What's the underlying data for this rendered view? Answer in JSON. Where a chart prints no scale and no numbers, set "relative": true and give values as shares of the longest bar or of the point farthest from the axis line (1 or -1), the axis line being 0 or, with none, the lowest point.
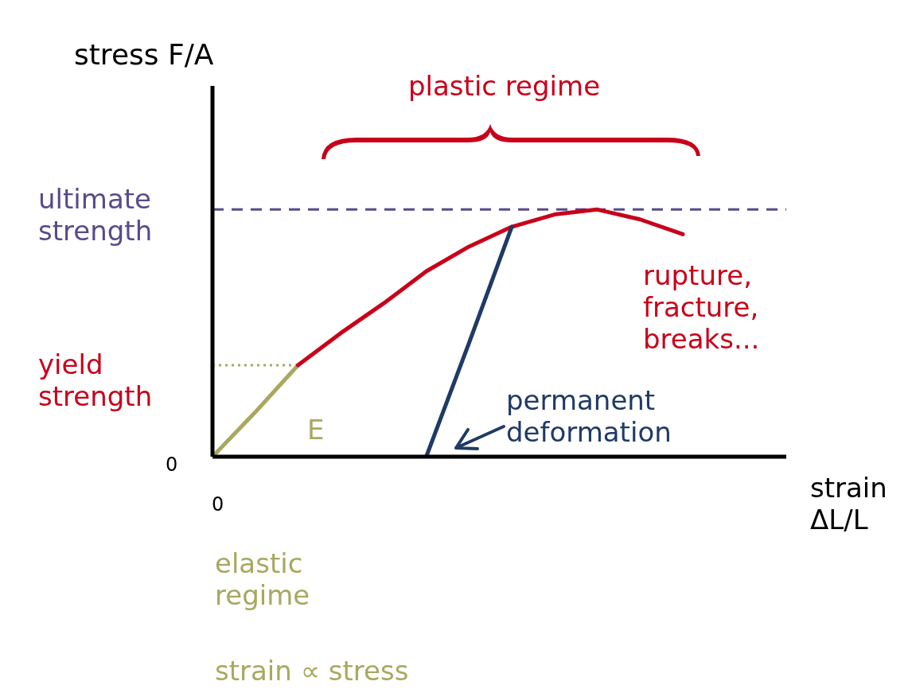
{
  "chart_data": {
    "type": "line",
    "relative": true,
    "ylabel": "stress F/A",
    "xlabel": "strain ΔL/L",
    "categories": [
      null,
      null,
      null,
      null,
      null,
      null,
      null,
      null,
      null,
      null,
      null,
      null
    ],
    "series": [
      {
        "color": "#a8a860",
        "values": [
          0,
          0.18,
          0.37,
          null,
          null,
          null,
          null,
          null,
          null,
          null,
          null,
          null
        ]
      },
      {
        "color": "#c8001a",
        "values": [
          null,
          null,
          0.37,
          0.5,
          0.62,
          0.75,
          0.85,
          0.93,
          0.98,
          1,
          0.96,
          0.9
        ]
      },
      {
        "color": "#1f3a66",
        "values": [
          null,
          null,
          null,
          null,
          null,
          0,
          0.46,
          0.93,
          null,
          null,
          null,
          null
        ]
      }
    ],
    "ref_lines": [
      {
        "axis": "y",
        "value": 1,
        "label": "ultimate strength",
        "color": "#5a4a8a",
        "line_style": "dashed"
      },
      {
        "axis": "y",
        "value": 0.37,
        "label": "yield strength",
        "color": "#a8a860",
        "line_style": "dotted"
      }
    ],
    "annotations": [
      "plastic regime",
      "rupture, fracture, breaks...",
      "permanent deformation",
      "E",
      "elastic regime",
      "strain ∝ stress",
      "0",
      "0"
    ],
    "grid": false,
    "legend": false,
    "marker": "none",
    "line_style": "solid"
  }
}
